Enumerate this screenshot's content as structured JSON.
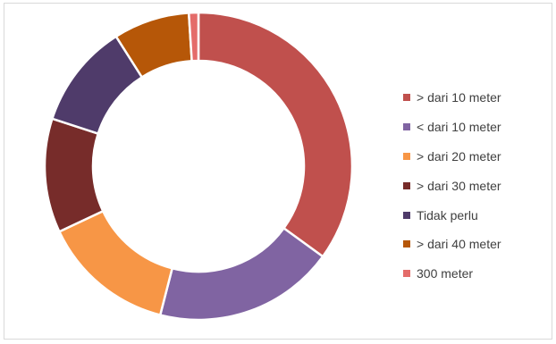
{
  "chart_data": {
    "type": "pie",
    "variant": "donut",
    "title": "",
    "legend_position": "right",
    "series": [
      {
        "name": "> dari 10 meter",
        "value": 35,
        "color": "#c0504d"
      },
      {
        "name": "< dari 10 meter",
        "value": 19,
        "color": "#8064a2"
      },
      {
        "name": "> dari 20 meter",
        "value": 14,
        "color": "#f79646"
      },
      {
        "name": "> dari 30 meter",
        "value": 12,
        "color": "#772c2a"
      },
      {
        "name": "Tidak perlu",
        "value": 11,
        "color": "#4f3b6a"
      },
      {
        "name": "> dari 40 meter",
        "value": 8,
        "color": "#b65708"
      },
      {
        "name": "300 meter",
        "value": 1,
        "color": "#e46c6a"
      }
    ]
  }
}
